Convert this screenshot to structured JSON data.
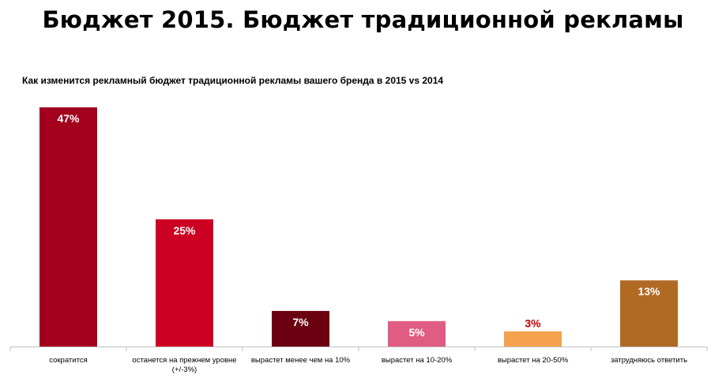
{
  "page": {
    "title": "Бюджет 2015. Бюджет традиционной рекламы"
  },
  "chart_data": {
    "type": "bar",
    "title": "Как изменится рекламный бюджет традиционной рекламы вашего бренда в 2015 vs 2014",
    "xlabel": "",
    "ylabel": "",
    "ylim": [
      0,
      47
    ],
    "grid": false,
    "legend": "none",
    "categories": [
      [
        "сократится"
      ],
      [
        "останется на прежнем уровне",
        "(+/-3%)"
      ],
      [
        "вырастет менее чем на 10%"
      ],
      [
        "вырастет на 10-20%"
      ],
      [
        "вырастет на 20-50%"
      ],
      [
        "затрудняюсь ответить"
      ]
    ],
    "values": [
      47,
      25,
      7,
      5,
      3,
      13
    ],
    "value_labels": [
      "47%",
      "25%",
      "7%",
      "5%",
      "3%",
      "13%"
    ],
    "bar_colors": [
      "#A3001E",
      "#CC0022",
      "#6B0010",
      "#E05C82",
      "#F4A24E",
      "#B06A24"
    ],
    "label_colors": [
      "#FFFFFF",
      "#FFFFFF",
      "#FFFFFF",
      "#FFFFFF",
      "#C00000",
      "#FFFFFF"
    ]
  }
}
